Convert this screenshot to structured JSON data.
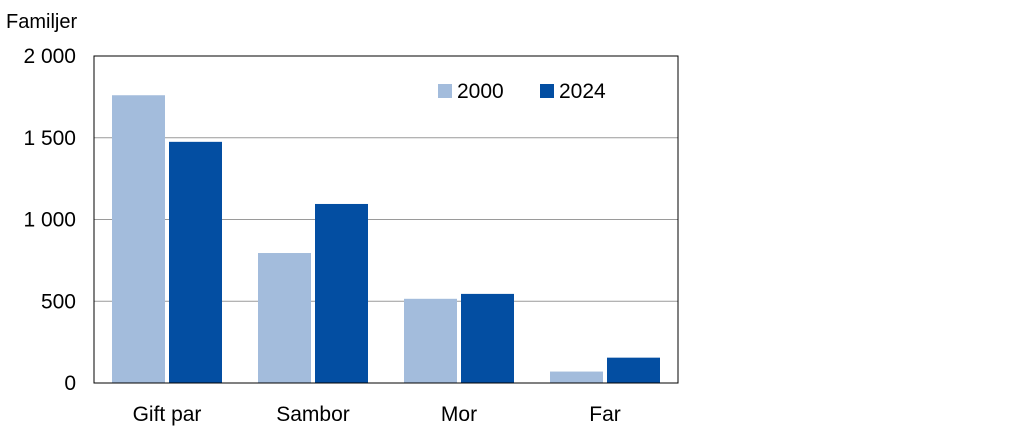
{
  "chart_data": {
    "type": "bar",
    "ylabel": "Familjer",
    "categories": [
      "Gift par",
      "Sambor",
      "Mor",
      "Far"
    ],
    "series": [
      {
        "name": "2000",
        "values": [
          1760,
          795,
          515,
          70
        ],
        "color": "#a3bcdc"
      },
      {
        "name": "2024",
        "values": [
          1475,
          1095,
          545,
          155
        ],
        "color": "#034ea2"
      }
    ],
    "ylim": [
      0,
      2000
    ],
    "yticks": [
      0,
      500,
      1000,
      1500,
      2000
    ],
    "ytick_labels": [
      "0",
      "500",
      "1 000",
      "1 500",
      "2 000"
    ],
    "grid": true,
    "legend_position": "top-right"
  }
}
